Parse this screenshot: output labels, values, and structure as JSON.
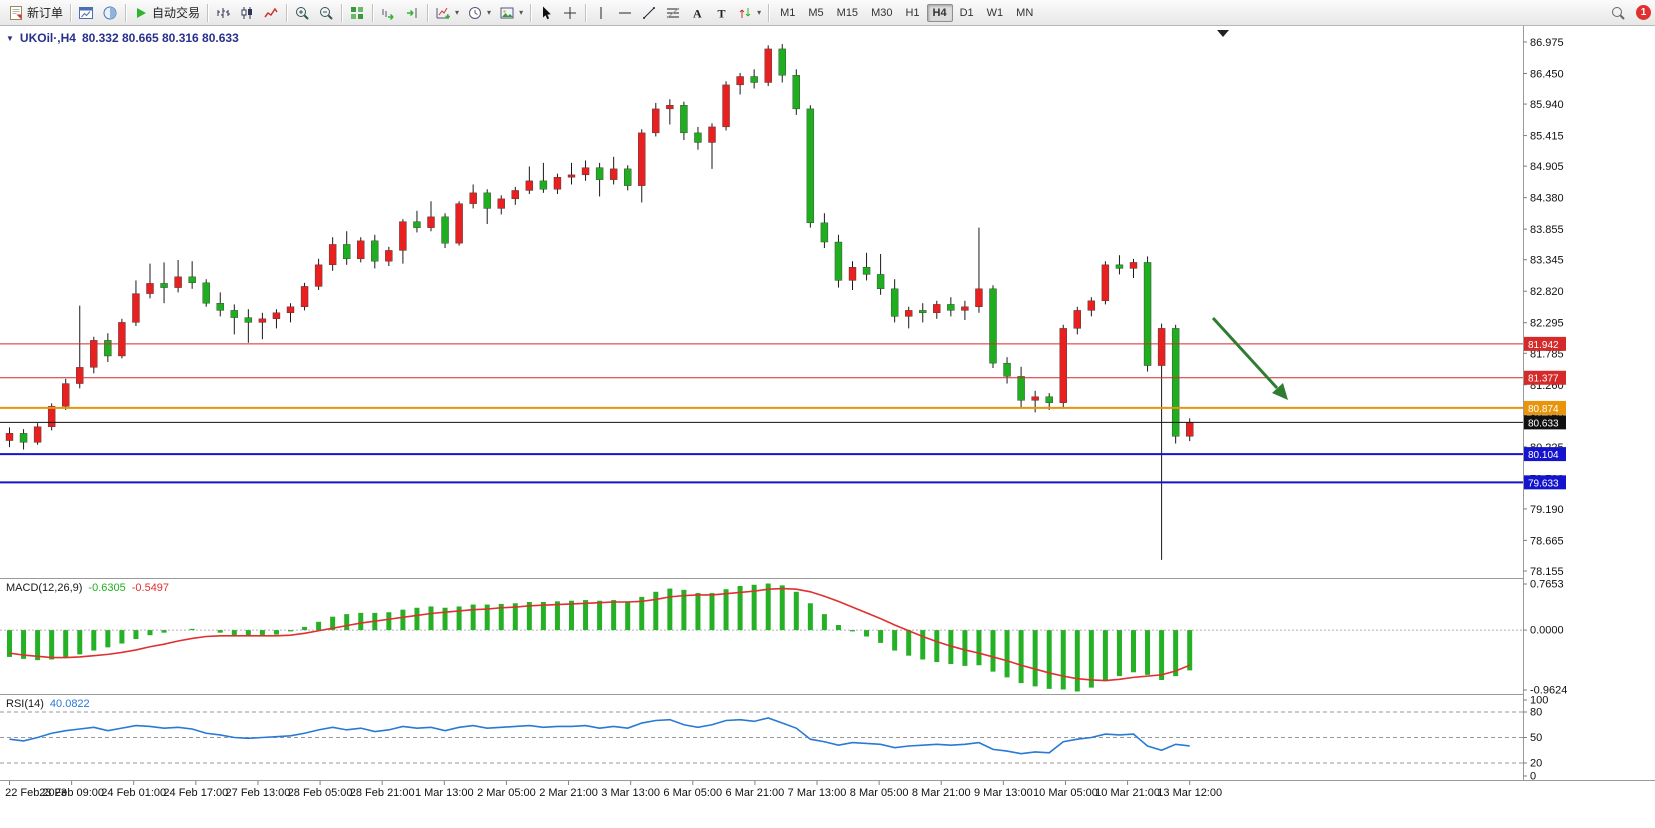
{
  "toolbar": {
    "new_order": "新订单",
    "auto_trading": "自动交易",
    "text_tool_glyph": "A",
    "label_tool_glyph": "T",
    "timeframes": [
      "M1",
      "M5",
      "M15",
      "M30",
      "H1",
      "H4",
      "D1",
      "W1",
      "MN"
    ],
    "active_timeframe": "H4",
    "notification_count": "1",
    "icon_names": [
      "new-order-icon",
      "chart-window-icon",
      "profile-icon",
      "autotrade-play-icon",
      "bar-chart-icon",
      "candlestick-chart-icon",
      "line-chart-icon",
      "zoom-in-icon",
      "zoom-out-icon",
      "tile-windows-icon",
      "auto-scroll-icon",
      "chart-shift-icon",
      "indicators-icon",
      "periods-icon",
      "templates-icon",
      "cursor-icon",
      "crosshair-icon",
      "vertical-line-icon",
      "horizontal-line-icon",
      "trendline-icon",
      "fibonacci-icon",
      "text-icon",
      "label-icon",
      "arrows-icon",
      "search-icon",
      "notification-badge"
    ]
  },
  "chart": {
    "symbol_title": "UKOil·,H4",
    "ohlc_text": "80.332 80.665 80.316 80.633",
    "axis": {
      "price_top": 87.242,
      "price_bottom": 78.038
    },
    "price_axis_labels": [
      "86.975",
      "86.450",
      "85.940",
      "85.415",
      "84.905",
      "84.380",
      "83.855",
      "83.345",
      "82.820",
      "82.295",
      "81.785",
      "81.260",
      "80.750",
      "80.225",
      "79.700",
      "79.190",
      "78.665",
      "78.155"
    ],
    "levels": [
      {
        "price": 81.942,
        "label": "81.942",
        "color": "#d42a2a",
        "thickness": 1,
        "name": "resistance-line-1"
      },
      {
        "price": 81.377,
        "label": "81.377",
        "color": "#d42a2a",
        "thickness": 1,
        "name": "resistance-line-2"
      },
      {
        "price": 80.874,
        "label": "80.874",
        "color": "#e8950c",
        "thickness": 2,
        "name": "pivot-line"
      },
      {
        "price": 80.633,
        "label": "80.633",
        "color": "#111111",
        "thickness": 1,
        "name": "current-price-line"
      },
      {
        "price": 80.104,
        "label": "80.104",
        "color": "#1414cc",
        "thickness": 2,
        "name": "support-line-1"
      },
      {
        "price": 79.633,
        "label": "79.633",
        "color": "#1414cc",
        "thickness": 2,
        "name": "support-line-2"
      }
    ],
    "arrow_annotation": {
      "color": "#2e7d32",
      "direction": "down-right"
    }
  },
  "chart_data": {
    "type": "candlestick",
    "symbol": "UKOil",
    "timeframe": "H4",
    "up_color": "#e82020",
    "down_color": "#1fae1f",
    "wick_color": "#1a1a1a",
    "x_labels": [
      "22 Feb 2023",
      "23 Feb 09:00",
      "24 Feb 01:00",
      "24 Feb 17:00",
      "27 Feb 13:00",
      "28 Feb 05:00",
      "28 Feb 21:00",
      "1 Mar 13:00",
      "2 Mar 05:00",
      "2 Mar 21:00",
      "3 Mar 13:00",
      "6 Mar 05:00",
      "6 Mar 21:00",
      "7 Mar 13:00",
      "8 Mar 05:00",
      "8 Mar 21:00",
      "9 Mar 13:00",
      "10 Mar 05:00",
      "10 Mar 21:00",
      "13 Mar 12:00"
    ],
    "candles": [
      [
        80.33,
        80.55,
        80.22,
        80.45
      ],
      [
        80.45,
        80.52,
        80.18,
        80.3
      ],
      [
        80.3,
        80.62,
        80.26,
        80.56
      ],
      [
        80.56,
        80.95,
        80.5,
        80.9
      ],
      [
        80.9,
        81.36,
        80.84,
        81.28
      ],
      [
        81.28,
        82.58,
        81.2,
        81.55
      ],
      [
        81.55,
        82.06,
        81.45,
        82.0
      ],
      [
        82.0,
        82.12,
        81.64,
        81.74
      ],
      [
        81.74,
        82.36,
        81.7,
        82.3
      ],
      [
        82.3,
        83.0,
        82.24,
        82.78
      ],
      [
        82.78,
        83.28,
        82.7,
        82.95
      ],
      [
        82.95,
        83.3,
        82.62,
        82.88
      ],
      [
        82.88,
        83.34,
        82.8,
        83.06
      ],
      [
        83.06,
        83.32,
        82.86,
        82.96
      ],
      [
        82.96,
        83.02,
        82.56,
        82.62
      ],
      [
        82.62,
        82.8,
        82.4,
        82.5
      ],
      [
        82.5,
        82.6,
        82.1,
        82.38
      ],
      [
        82.38,
        82.52,
        81.96,
        82.3
      ],
      [
        82.3,
        82.46,
        82.02,
        82.36
      ],
      [
        82.36,
        82.52,
        82.2,
        82.46
      ],
      [
        82.46,
        82.62,
        82.3,
        82.56
      ],
      [
        82.56,
        82.96,
        82.5,
        82.9
      ],
      [
        82.9,
        83.36,
        82.84,
        83.26
      ],
      [
        83.26,
        83.72,
        83.16,
        83.6
      ],
      [
        83.6,
        83.82,
        83.26,
        83.36
      ],
      [
        83.36,
        83.72,
        83.3,
        83.66
      ],
      [
        83.66,
        83.76,
        83.2,
        83.32
      ],
      [
        83.32,
        83.56,
        83.24,
        83.5
      ],
      [
        83.5,
        84.02,
        83.28,
        83.98
      ],
      [
        83.98,
        84.16,
        83.8,
        83.88
      ],
      [
        83.88,
        84.32,
        83.82,
        84.06
      ],
      [
        84.06,
        84.12,
        83.54,
        83.62
      ],
      [
        83.62,
        84.32,
        83.58,
        84.28
      ],
      [
        84.28,
        84.6,
        84.2,
        84.46
      ],
      [
        84.46,
        84.52,
        83.94,
        84.2
      ],
      [
        84.2,
        84.42,
        84.1,
        84.36
      ],
      [
        84.36,
        84.56,
        84.26,
        84.5
      ],
      [
        84.5,
        84.9,
        84.44,
        84.66
      ],
      [
        84.66,
        84.96,
        84.46,
        84.52
      ],
      [
        84.52,
        84.78,
        84.44,
        84.72
      ],
      [
        84.72,
        84.96,
        84.6,
        84.76
      ],
      [
        84.76,
        85.0,
        84.66,
        84.88
      ],
      [
        84.88,
        84.96,
        84.4,
        84.68
      ],
      [
        84.68,
        85.06,
        84.6,
        84.86
      ],
      [
        84.86,
        84.92,
        84.5,
        84.58
      ],
      [
        84.58,
        85.52,
        84.3,
        85.46
      ],
      [
        85.46,
        85.96,
        85.4,
        85.86
      ],
      [
        85.86,
        86.02,
        85.6,
        85.92
      ],
      [
        85.92,
        85.98,
        85.34,
        85.46
      ],
      [
        85.46,
        85.56,
        85.18,
        85.3
      ],
      [
        85.3,
        85.62,
        84.86,
        85.56
      ],
      [
        85.56,
        86.32,
        85.5,
        86.26
      ],
      [
        86.26,
        86.46,
        86.1,
        86.4
      ],
      [
        86.4,
        86.52,
        86.2,
        86.3
      ],
      [
        86.3,
        86.92,
        86.24,
        86.86
      ],
      [
        86.86,
        86.94,
        86.3,
        86.42
      ],
      [
        86.42,
        86.52,
        85.76,
        85.86
      ],
      [
        85.86,
        85.92,
        83.88,
        83.96
      ],
      [
        83.96,
        84.12,
        83.54,
        83.64
      ],
      [
        83.64,
        83.76,
        82.88,
        83.0
      ],
      [
        83.0,
        83.32,
        82.84,
        83.22
      ],
      [
        83.22,
        83.46,
        83.0,
        83.1
      ],
      [
        83.1,
        83.44,
        82.76,
        82.86
      ],
      [
        82.86,
        83.02,
        82.3,
        82.4
      ],
      [
        82.4,
        82.56,
        82.2,
        82.5
      ],
      [
        82.5,
        82.62,
        82.3,
        82.46
      ],
      [
        82.46,
        82.66,
        82.36,
        82.6
      ],
      [
        82.6,
        82.72,
        82.4,
        82.5
      ],
      [
        82.5,
        82.66,
        82.34,
        82.56
      ],
      [
        82.56,
        83.88,
        82.46,
        82.86
      ],
      [
        82.86,
        82.92,
        81.54,
        81.62
      ],
      [
        81.62,
        81.72,
        81.28,
        81.4
      ],
      [
        81.4,
        81.56,
        80.88,
        81.0
      ],
      [
        81.0,
        81.16,
        80.8,
        81.06
      ],
      [
        81.06,
        81.12,
        80.84,
        80.96
      ],
      [
        80.96,
        82.26,
        80.86,
        82.2
      ],
      [
        82.2,
        82.56,
        82.1,
        82.5
      ],
      [
        82.5,
        82.72,
        82.4,
        82.66
      ],
      [
        82.66,
        83.32,
        82.6,
        83.26
      ],
      [
        83.26,
        83.42,
        83.1,
        83.2
      ],
      [
        83.2,
        83.36,
        83.04,
        83.3
      ],
      [
        83.3,
        83.4,
        81.48,
        81.58
      ],
      [
        81.58,
        82.28,
        78.34,
        82.2
      ],
      [
        82.2,
        82.26,
        80.28,
        80.4
      ],
      [
        80.4,
        80.7,
        80.32,
        80.633
      ]
    ]
  },
  "macd": {
    "name": "MACD(12,26,9)",
    "value_main": "-0.6305",
    "value_signal": "-0.5497",
    "hist_color": "#25b025",
    "signal_color": "#e03030",
    "range": {
      "max": 0.8,
      "min": -1.0
    },
    "axis_labels": [
      {
        "v": 0.7653,
        "t": "0.7653"
      },
      {
        "v": 0,
        "t": "0.0000"
      },
      {
        "v": -0.9624,
        "t": "-0.9624"
      }
    ],
    "histogram": [
      -0.42,
      -0.45,
      -0.47,
      -0.46,
      -0.43,
      -0.38,
      -0.32,
      -0.27,
      -0.21,
      -0.14,
      -0.08,
      -0.04,
      0.0,
      0.02,
      0.0,
      -0.04,
      -0.08,
      -0.1,
      -0.1,
      -0.07,
      -0.02,
      0.05,
      0.13,
      0.21,
      0.25,
      0.27,
      0.27,
      0.28,
      0.32,
      0.35,
      0.37,
      0.35,
      0.37,
      0.4,
      0.4,
      0.41,
      0.42,
      0.44,
      0.44,
      0.45,
      0.46,
      0.47,
      0.46,
      0.47,
      0.45,
      0.52,
      0.6,
      0.65,
      0.63,
      0.58,
      0.58,
      0.64,
      0.69,
      0.71,
      0.73,
      0.7,
      0.6,
      0.42,
      0.25,
      0.08,
      -0.02,
      -0.1,
      -0.2,
      -0.32,
      -0.4,
      -0.46,
      -0.5,
      -0.53,
      -0.56,
      -0.55,
      -0.65,
      -0.74,
      -0.83,
      -0.88,
      -0.92,
      -0.93,
      -0.96,
      -0.9,
      -0.8,
      -0.72,
      -0.66,
      -0.7,
      -0.78,
      -0.72,
      -0.6305
    ],
    "signal": [
      -0.36,
      -0.39,
      -0.41,
      -0.43,
      -0.43,
      -0.42,
      -0.4,
      -0.38,
      -0.35,
      -0.31,
      -0.26,
      -0.22,
      -0.17,
      -0.13,
      -0.1,
      -0.09,
      -0.09,
      -0.09,
      -0.09,
      -0.09,
      -0.08,
      -0.05,
      -0.01,
      0.03,
      0.07,
      0.11,
      0.14,
      0.17,
      0.2,
      0.23,
      0.26,
      0.28,
      0.3,
      0.32,
      0.33,
      0.35,
      0.36,
      0.38,
      0.39,
      0.4,
      0.41,
      0.42,
      0.43,
      0.44,
      0.44,
      0.45,
      0.48,
      0.52,
      0.54,
      0.55,
      0.55,
      0.57,
      0.59,
      0.61,
      0.64,
      0.65,
      0.64,
      0.6,
      0.53,
      0.45,
      0.36,
      0.27,
      0.18,
      0.08,
      -0.01,
      -0.1,
      -0.18,
      -0.25,
      -0.31,
      -0.36,
      -0.42,
      -0.48,
      -0.55,
      -0.61,
      -0.67,
      -0.72,
      -0.76,
      -0.78,
      -0.79,
      -0.77,
      -0.74,
      -0.72,
      -0.7,
      -0.64,
      -0.5497
    ]
  },
  "rsi": {
    "name": "RSI(14)",
    "value": "40.0822",
    "line_color": "#2979d6",
    "range": {
      "max": 100,
      "min": 0
    },
    "levels": [
      80,
      50,
      20
    ],
    "axis_labels": [
      "100",
      "80",
      "50",
      "20",
      "0"
    ],
    "values": [
      48,
      46,
      50,
      55,
      58,
      60,
      62,
      58,
      61,
      64,
      63,
      61,
      62,
      60,
      55,
      53,
      50,
      49,
      50,
      51,
      52,
      55,
      59,
      62,
      59,
      61,
      57,
      59,
      63,
      61,
      62,
      58,
      62,
      64,
      61,
      62,
      63,
      64,
      62,
      63,
      63,
      64,
      61,
      63,
      61,
      67,
      70,
      71,
      65,
      62,
      65,
      70,
      71,
      69,
      73,
      67,
      61,
      48,
      45,
      41,
      44,
      43,
      42,
      38,
      40,
      41,
      42,
      41,
      42,
      44,
      36,
      34,
      31,
      33,
      32,
      45,
      48,
      50,
      54,
      53,
      54,
      40,
      35,
      42,
      40.08
    ]
  }
}
